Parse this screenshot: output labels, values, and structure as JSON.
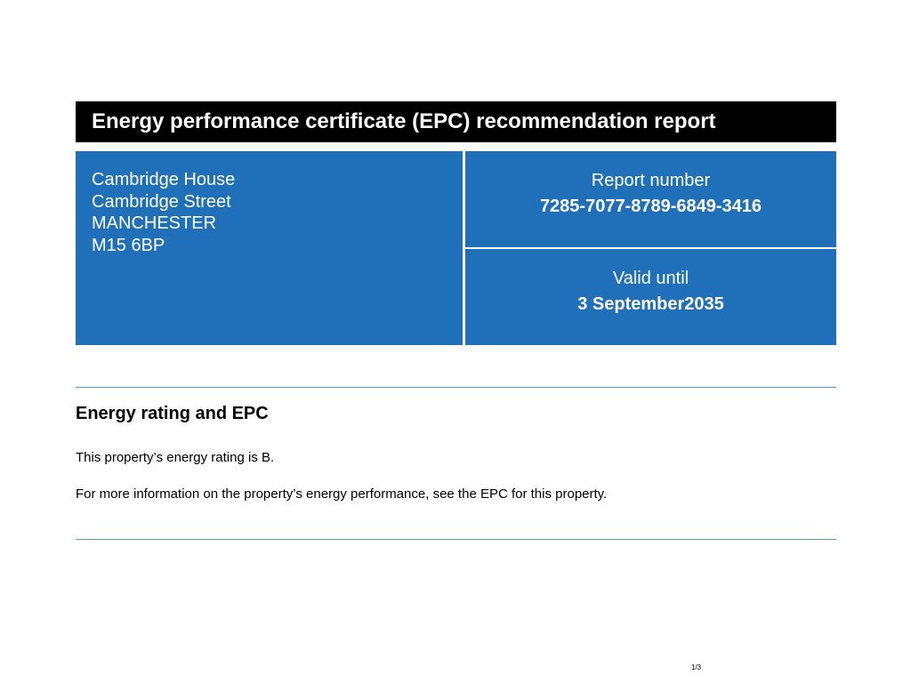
{
  "header": {
    "title": "Energy performance certificate (EPC) recommendation report"
  },
  "address": [
    "Cambridge House",
    "Cambridge Street",
    "MANCHESTER",
    "M15 6BP"
  ],
  "report": {
    "label": "Report number",
    "value": "7285-7077-8789-6849-3416"
  },
  "valid": {
    "label": "Valid until",
    "value": "3 September2035"
  },
  "section": {
    "heading": "Energy rating and EPC",
    "paragraphs": [
      "This property’s energy rating is B.",
      "For more information on the property’s energy performance, see the EPC for this property."
    ]
  },
  "page": "1/3"
}
